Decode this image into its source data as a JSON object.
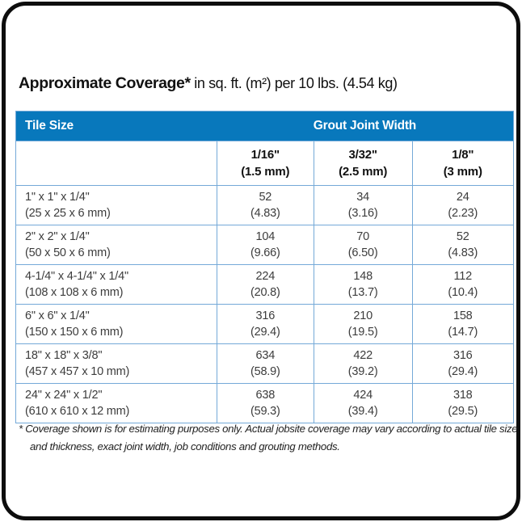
{
  "title": {
    "bold": "Approximate Coverage*",
    "rest": " in sq. ft. (m²) per 10 lbs. (4.54 kg)"
  },
  "chart_data": {
    "type": "table",
    "header": {
      "tile_size": "Tile Size",
      "grout_joint_width": "Grout Joint Width"
    },
    "joint_width_columns": [
      {
        "size_in": "1/16\"",
        "size_mm": "(1.5 mm)"
      },
      {
        "size_in": "3/32\"",
        "size_mm": "(2.5 mm)"
      },
      {
        "size_in": "1/8\"",
        "size_mm": "(3 mm)"
      }
    ],
    "rows": [
      {
        "tile_size_in": "1\" x 1\" x 1/4\"",
        "tile_size_mm": "(25 x 25 x 6 mm)",
        "coverage": [
          {
            "sqft": "52",
            "m2": "(4.83)"
          },
          {
            "sqft": "34",
            "m2": "(3.16)"
          },
          {
            "sqft": "24",
            "m2": "(2.23)"
          }
        ]
      },
      {
        "tile_size_in": "2\" x 2\" x 1/4\"",
        "tile_size_mm": "(50 x 50 x 6 mm)",
        "coverage": [
          {
            "sqft": "104",
            "m2": "(9.66)"
          },
          {
            "sqft": "70",
            "m2": "(6.50)"
          },
          {
            "sqft": "52",
            "m2": "(4.83)"
          }
        ]
      },
      {
        "tile_size_in": "4-1/4\" x 4-1/4\" x 1/4\"",
        "tile_size_mm": "(108 x 108 x 6 mm)",
        "coverage": [
          {
            "sqft": "224",
            "m2": "(20.8)"
          },
          {
            "sqft": "148",
            "m2": "(13.7)"
          },
          {
            "sqft": "112",
            "m2": "(10.4)"
          }
        ]
      },
      {
        "tile_size_in": "6\" x 6\" x 1/4\"",
        "tile_size_mm": "(150 x 150 x 6 mm)",
        "coverage": [
          {
            "sqft": "316",
            "m2": "(29.4)"
          },
          {
            "sqft": "210",
            "m2": "(19.5)"
          },
          {
            "sqft": "158",
            "m2": "(14.7)"
          }
        ]
      },
      {
        "tile_size_in": "18\" x 18\" x 3/8\"",
        "tile_size_mm": "(457 x 457 x 10 mm)",
        "coverage": [
          {
            "sqft": "634",
            "m2": "(58.9)"
          },
          {
            "sqft": "422",
            "m2": "(39.2)"
          },
          {
            "sqft": "316",
            "m2": "(29.4)"
          }
        ]
      },
      {
        "tile_size_in": "24\" x 24\" x 1/2\"",
        "tile_size_mm": "(610 x 610 x 12 mm)",
        "coverage": [
          {
            "sqft": "638",
            "m2": "(59.3)"
          },
          {
            "sqft": "424",
            "m2": "(39.4)"
          },
          {
            "sqft": "318",
            "m2": "(29.5)"
          }
        ]
      }
    ]
  },
  "footnote": "* Coverage shown is for estimating purposes only. Actual jobsite coverage may vary according to actual tile size and thickness, exact joint width, job conditions and grouting methods.",
  "colors": {
    "header_bg": "#0878BC",
    "grid_line": "#74A9D8",
    "card_border": "#0d0d0d",
    "body_text": "#3c3c3c"
  }
}
